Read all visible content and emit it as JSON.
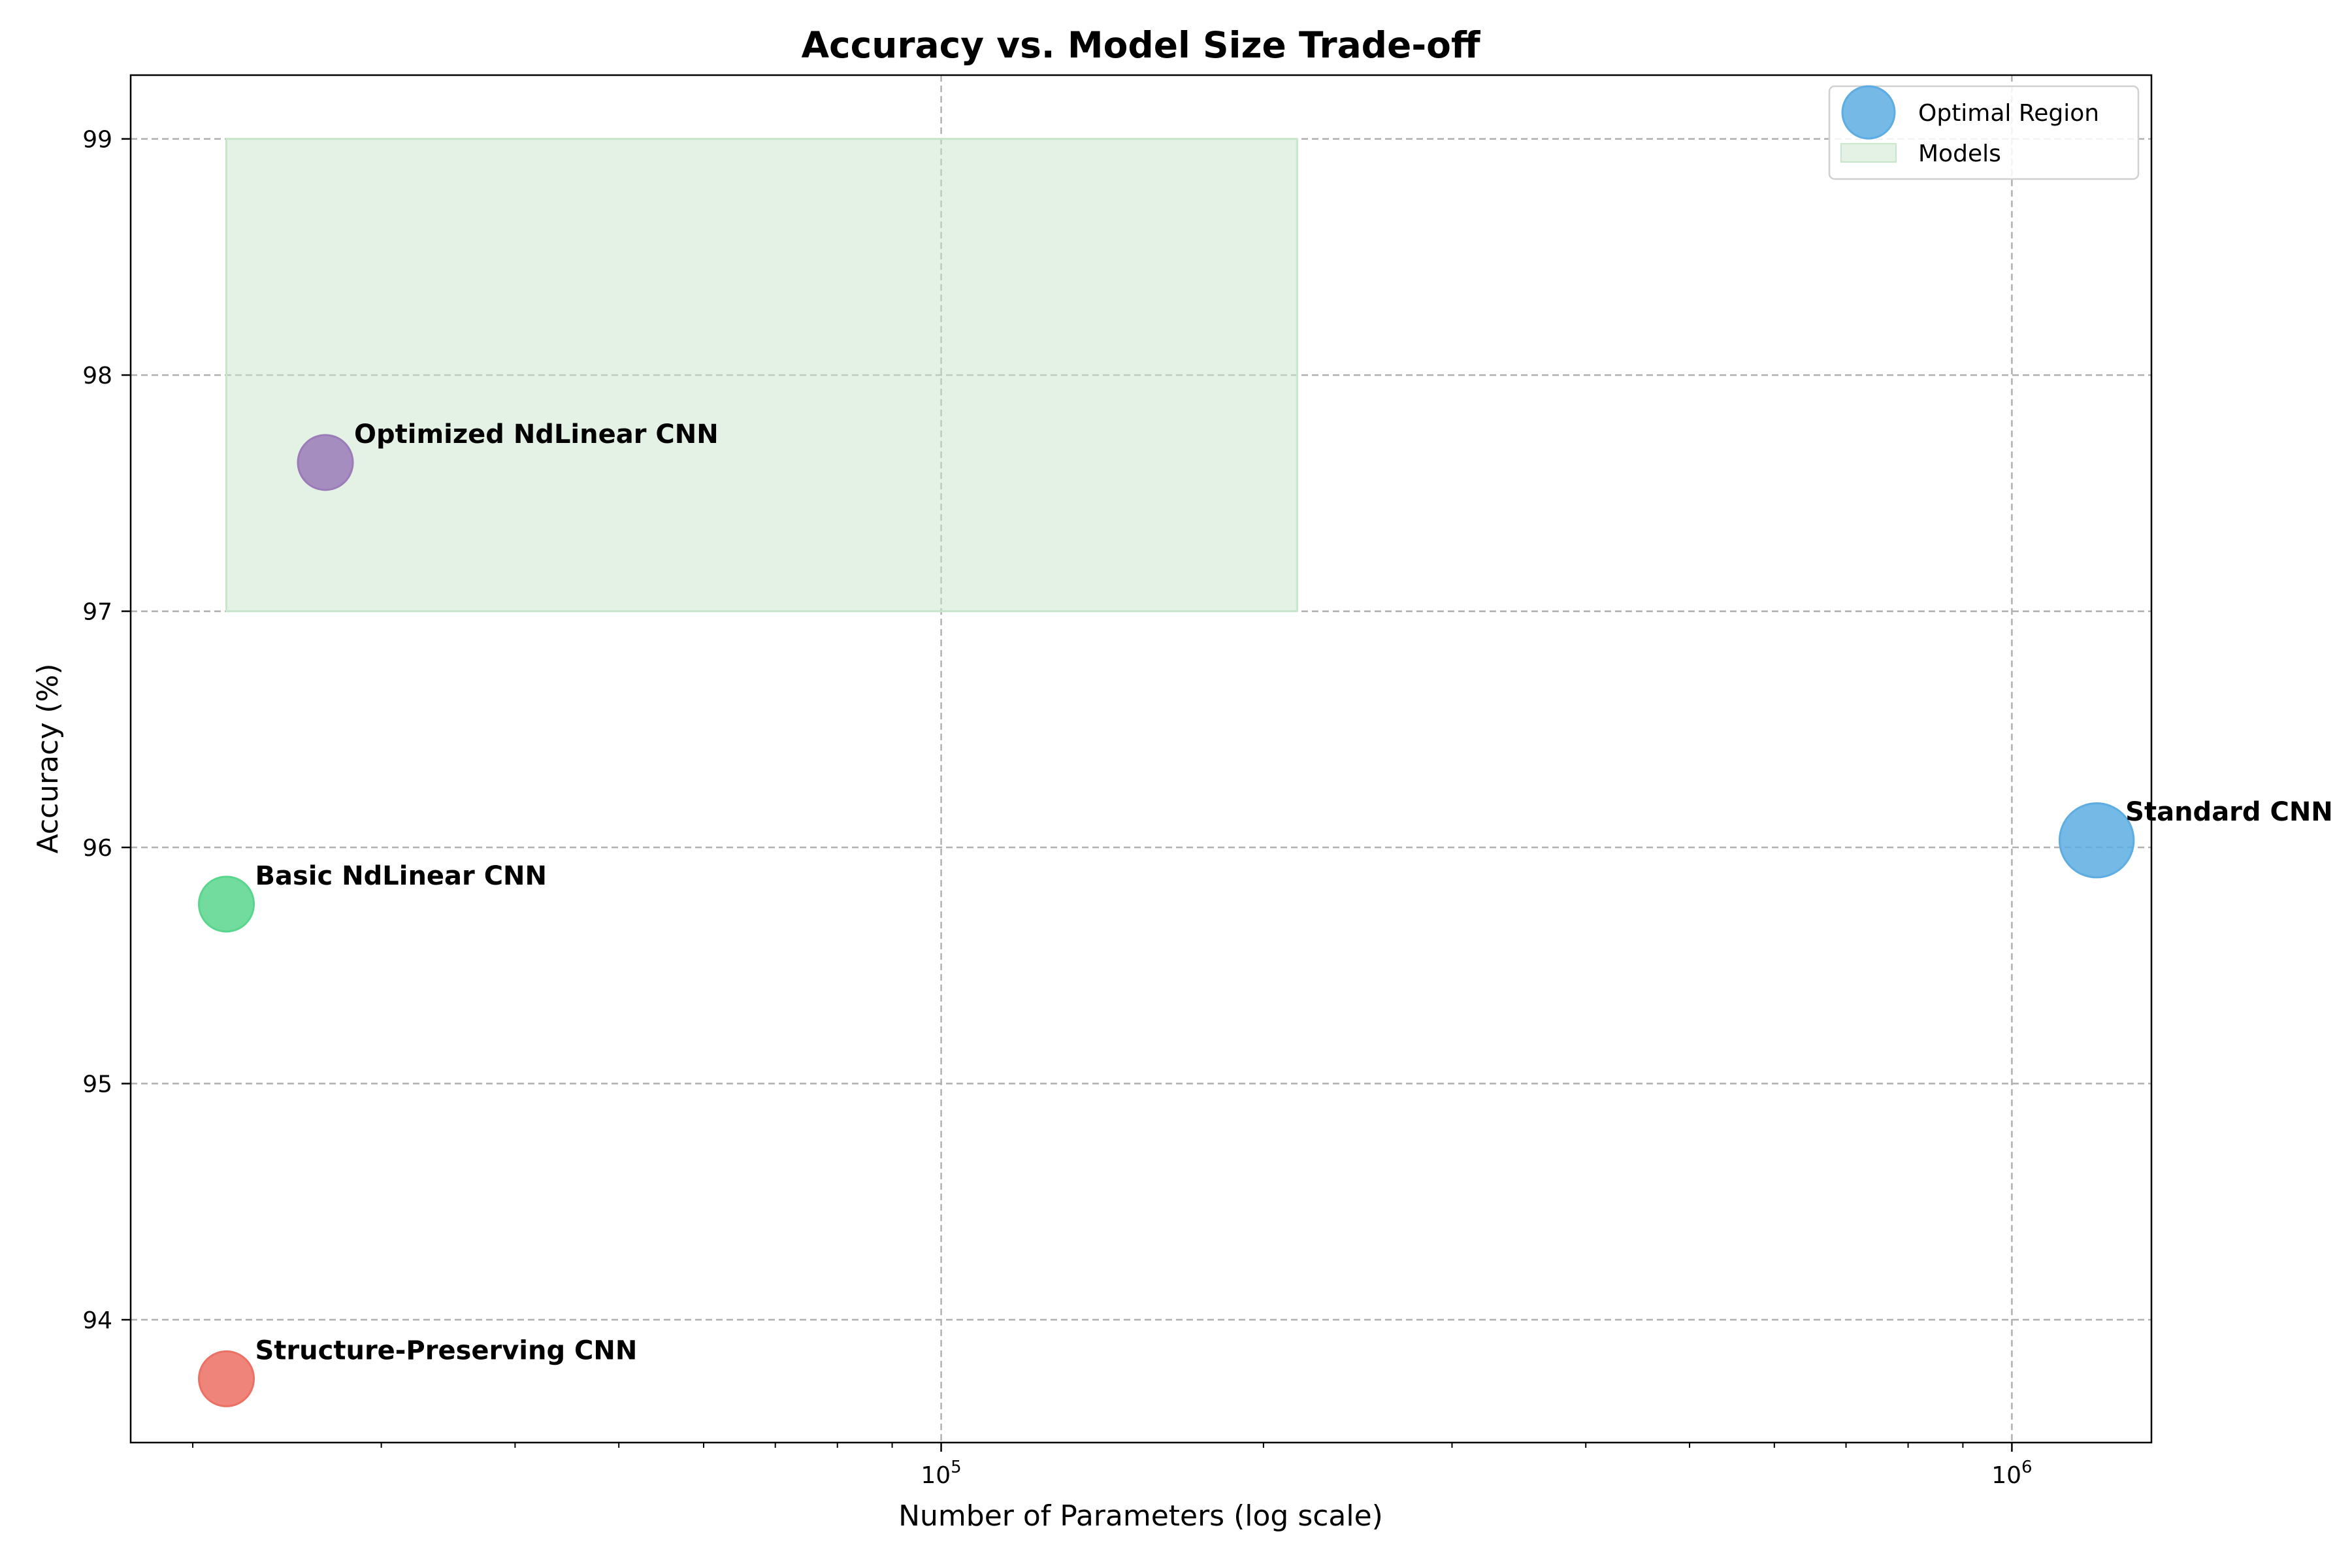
{
  "chart_data": {
    "type": "scatter",
    "title": "Accuracy vs. Model Size Trade-off",
    "xlabel": "Number of Parameters (log scale)",
    "ylabel": "Accuracy (%)",
    "xscale": "log",
    "xlim": [
      17500,
      1350000
    ],
    "ylim": [
      93.48,
      99.27
    ],
    "yticks": [
      "94",
      "95",
      "96",
      "97",
      "98",
      "99"
    ],
    "xticks": [
      {
        "value": 100000,
        "base": "10",
        "exp": "5"
      },
      {
        "value": 1000000,
        "base": "10",
        "exp": "6"
      }
    ],
    "grid": true,
    "region": {
      "x": [
        21500,
        215000
      ],
      "y": [
        97,
        99
      ],
      "color": "#c8e6c9"
    },
    "points": [
      {
        "label": "Standard CNN",
        "x": 1200000,
        "y": 96.03,
        "size": 1.35,
        "color": "#5dade2"
      },
      {
        "label": "Optimized NdLinear CNN",
        "x": 26600,
        "y": 97.63,
        "size": 1.0,
        "color": "#9b7bb8"
      },
      {
        "label": "Basic NdLinear CNN",
        "x": 21500,
        "y": 95.76,
        "size": 1.0,
        "color": "#58d68d"
      },
      {
        "label": "Structure-Preserving CNN",
        "x": 21500,
        "y": 93.75,
        "size": 1.0,
        "color": "#ec7063"
      }
    ],
    "legend": {
      "placement": "top-right",
      "entries": [
        {
          "label": "Optimal Region",
          "color": "#5dade2",
          "kind": "marker"
        },
        {
          "label": "Models",
          "color": "#c8e6c9",
          "kind": "patch"
        }
      ]
    }
  }
}
